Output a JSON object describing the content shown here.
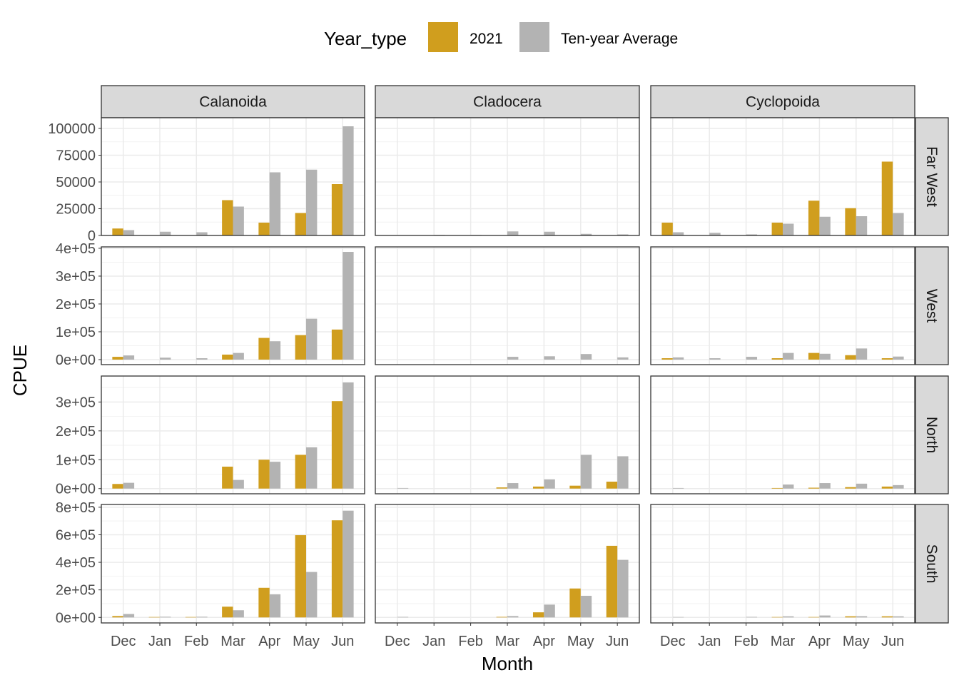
{
  "chart_data": {
    "type": "bar",
    "xlabel": "Month",
    "ylabel": "CPUE",
    "categories": [
      "Dec",
      "Jan",
      "Feb",
      "Mar",
      "Apr",
      "May",
      "Jun"
    ],
    "legend": {
      "title": "Year_type",
      "position": "top",
      "entries": [
        {
          "name": "2021",
          "color": "#D09E1E"
        },
        {
          "name": "Ten-year Average",
          "color": "#B3B3B3"
        }
      ]
    },
    "grid": true,
    "columns": [
      "Calanoida",
      "Cladocera",
      "Cyclopoida"
    ],
    "rows": [
      {
        "name": "Far West",
        "ylim": [
          0,
          110000
        ],
        "ticks": [
          {
            "value": 0,
            "label": "0"
          },
          {
            "value": 25000,
            "label": "25000"
          },
          {
            "value": 50000,
            "label": "50000"
          },
          {
            "value": 75000,
            "label": "75000"
          },
          {
            "value": 100000,
            "label": "100000"
          }
        ],
        "panels": [
          {
            "series": [
              {
                "name": "2021",
                "values": [
                  6500,
                  0,
                  0,
                  33000,
                  12000,
                  21000,
                  48000
                ]
              },
              {
                "name": "Ten-year Average",
                "values": [
                  5000,
                  3500,
                  3000,
                  27000,
                  59000,
                  61500,
                  102000
                ]
              }
            ]
          },
          {
            "series": [
              {
                "name": "2021",
                "values": [
                  0,
                  0,
                  0,
                  0,
                  0,
                  0,
                  0
                ]
              },
              {
                "name": "Ten-year Average",
                "values": [
                  0,
                  500,
                  500,
                  3800,
                  3500,
                  1500,
                  1000
                ]
              }
            ]
          },
          {
            "series": [
              {
                "name": "2021",
                "values": [
                  12000,
                  0,
                  0,
                  12000,
                  32500,
                  25500,
                  69000
                ]
              },
              {
                "name": "Ten-year Average",
                "values": [
                  3000,
                  2500,
                  1000,
                  11000,
                  17500,
                  18000,
                  21000
                ]
              }
            ]
          }
        ]
      },
      {
        "name": "West",
        "ylim": [
          -18000,
          405000
        ],
        "ticks": [
          {
            "value": 0,
            "label": "0e+00"
          },
          {
            "value": 100000,
            "label": "1e+05"
          },
          {
            "value": 200000,
            "label": "2e+05"
          },
          {
            "value": 300000,
            "label": "3e+05"
          },
          {
            "value": 400000,
            "label": "4e+05"
          }
        ],
        "panels": [
          {
            "series": [
              {
                "name": "2021",
                "values": [
                  10000,
                  0,
                  0,
                  18000,
                  78000,
                  88000,
                  108000
                ]
              },
              {
                "name": "Ten-year Average",
                "values": [
                  15000,
                  7000,
                  5000,
                  24000,
                  66000,
                  147000,
                  387000
                ]
              }
            ]
          },
          {
            "series": [
              {
                "name": "2021",
                "values": [
                  0,
                  0,
                  0,
                  0,
                  0,
                  0,
                  0
                ]
              },
              {
                "name": "Ten-year Average",
                "values": [
                  0,
                  0,
                  0,
                  10000,
                  12000,
                  20000,
                  8000
                ]
              }
            ]
          },
          {
            "series": [
              {
                "name": "2021",
                "values": [
                  5000,
                  0,
                  0,
                  5000,
                  24000,
                  16000,
                  5000
                ]
              },
              {
                "name": "Ten-year Average",
                "values": [
                  8000,
                  5000,
                  10000,
                  24000,
                  21000,
                  40000,
                  11000
                ]
              }
            ]
          }
        ]
      },
      {
        "name": "North",
        "ylim": [
          -18000,
          390000
        ],
        "ticks": [
          {
            "value": 0,
            "label": "0e+00"
          },
          {
            "value": 100000,
            "label": "1e+05"
          },
          {
            "value": 200000,
            "label": "2e+05"
          },
          {
            "value": 300000,
            "label": "3e+05"
          }
        ],
        "panels": [
          {
            "series": [
              {
                "name": "2021",
                "values": [
                  16000,
                  0,
                  0,
                  76000,
                  100000,
                  117000,
                  303000
                ]
              },
              {
                "name": "Ten-year Average",
                "values": [
                  20000,
                  0,
                  0,
                  30000,
                  93000,
                  143000,
                  368000
                ]
              }
            ]
          },
          {
            "series": [
              {
                "name": "2021",
                "values": [
                  0,
                  0,
                  0,
                  4000,
                  7000,
                  10000,
                  24000
                ]
              },
              {
                "name": "Ten-year Average",
                "values": [
                  2000,
                  0,
                  0,
                  19000,
                  32000,
                  117000,
                  112000
                ]
              }
            ]
          },
          {
            "series": [
              {
                "name": "2021",
                "values": [
                  0,
                  0,
                  0,
                  2000,
                  3000,
                  5000,
                  7000
                ]
              },
              {
                "name": "Ten-year Average",
                "values": [
                  2000,
                  0,
                  0,
                  14000,
                  19000,
                  17000,
                  12000
                ]
              }
            ]
          }
        ]
      },
      {
        "name": "South",
        "ylim": [
          -40000,
          820000
        ],
        "ticks": [
          {
            "value": 0,
            "label": "0e+00"
          },
          {
            "value": 200000,
            "label": "2e+05"
          },
          {
            "value": 400000,
            "label": "4e+05"
          },
          {
            "value": 600000,
            "label": "6e+05"
          },
          {
            "value": 800000,
            "label": "8e+05"
          }
        ],
        "panels": [
          {
            "series": [
              {
                "name": "2021",
                "values": [
                  10000,
                  3000,
                  3000,
                  78000,
                  215000,
                  597000,
                  705000
                ]
              },
              {
                "name": "Ten-year Average",
                "values": [
                  25000,
                  5000,
                  5000,
                  52000,
                  168000,
                  330000,
                  775000
                ]
              }
            ]
          },
          {
            "series": [
              {
                "name": "2021",
                "values": [
                  0,
                  0,
                  0,
                  4000,
                  37000,
                  210000,
                  520000
                ]
              },
              {
                "name": "Ten-year Average",
                "values": [
                  4000,
                  0,
                  0,
                  10000,
                  93000,
                  157000,
                  418000
                ]
              }
            ]
          },
          {
            "series": [
              {
                "name": "2021",
                "values": [
                  0,
                  0,
                  0,
                  3000,
                  3000,
                  8000,
                  8000
                ]
              },
              {
                "name": "Ten-year Average",
                "values": [
                  3000,
                  0,
                  4000,
                  8000,
                  14000,
                  9000,
                  8000
                ]
              }
            ]
          }
        ]
      }
    ]
  }
}
